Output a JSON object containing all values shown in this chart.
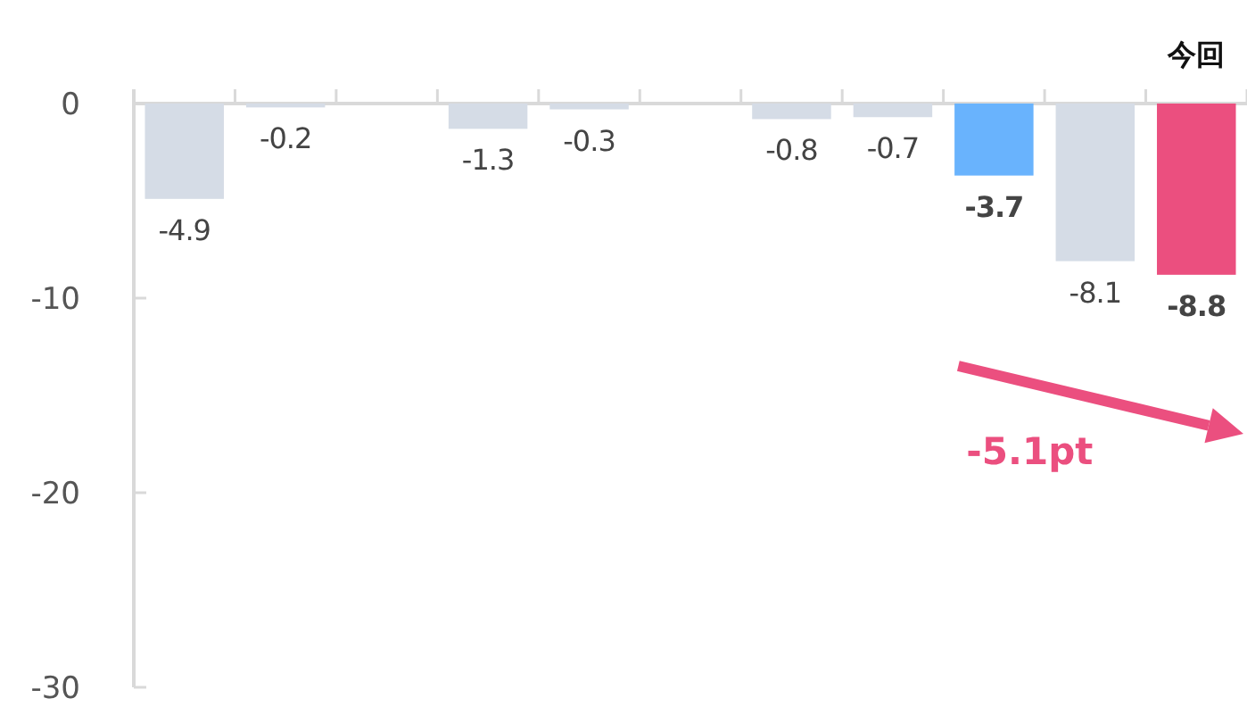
{
  "chart_data": {
    "type": "bar",
    "categories": [
      null,
      null,
      null,
      null,
      null,
      null,
      null,
      null,
      null,
      null,
      "今回"
    ],
    "values": [
      -4.9,
      -0.2,
      null,
      -1.3,
      -0.3,
      null,
      -0.8,
      -0.7,
      -3.7,
      -8.1,
      -8.8
    ],
    "colors": [
      "#d5dce6",
      "#d5dce6",
      "#d5dce6",
      "#d5dce6",
      "#d5dce6",
      "#d5dce6",
      "#d5dce6",
      "#d5dce6",
      "#69b3fd",
      "#d5dce6",
      "#eb4f7f"
    ],
    "ylim": [
      -30,
      0
    ],
    "yticks": [
      0,
      -10,
      -20,
      -30
    ],
    "grid": false,
    "data_labels": true,
    "annotations": [
      "-5.1pt"
    ]
  }
}
